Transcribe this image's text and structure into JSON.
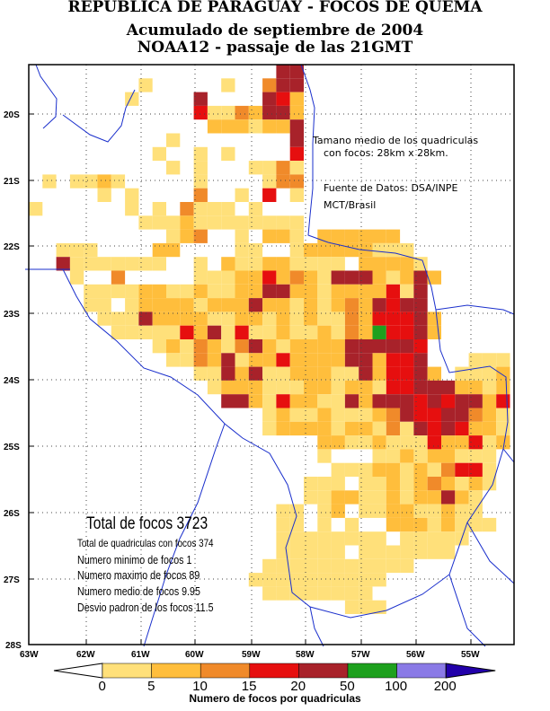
{
  "title": {
    "line1": "REPUBLICA DE PARAGUAY - FOCOS DE QUEMA",
    "line2": "Acumulado de septiembre de 2004",
    "line3": "NOAA12 - passaje de las 21GMT"
  },
  "notes": {
    "cell_size_1": "Tamano medio de los quadriculas",
    "cell_size_2": "con focos: 28km x 28km.",
    "source_1": "Fuente de Datos: DSA/INPE",
    "source_2": "MCT/Brasil"
  },
  "stats": {
    "total": "Total de focos 3723",
    "cells": "Total de quadriculas con focos 374",
    "min": "Numero minimo de focos 1",
    "max": "Numero maximo de focos 89",
    "mean": "Numero medio de focos 9.95",
    "stdev": "Desvio padron de los focos 11.5"
  },
  "axes": {
    "lat_labels": [
      "20S",
      "21S",
      "22S",
      "23S",
      "24S",
      "25S",
      "26S",
      "27S",
      "28S"
    ],
    "lon_labels": [
      "63W",
      "62W",
      "61W",
      "60W",
      "59W",
      "58W",
      "57W",
      "56W",
      "55W"
    ]
  },
  "legend": {
    "title": "Numero de focos por quadriculas",
    "labels": [
      "0",
      "5",
      "10",
      "15",
      "20",
      "50",
      "100",
      "200"
    ],
    "colors": [
      "#ffffff",
      "#ffe07a",
      "#ffbe3c",
      "#f08a2a",
      "#e60f0f",
      "#a8222a",
      "#1ea01e",
      "#8a7ae6",
      "#2200aa"
    ]
  },
  "colors": {
    "border": "#1a2fcc",
    "grid": "#444444"
  }
}
